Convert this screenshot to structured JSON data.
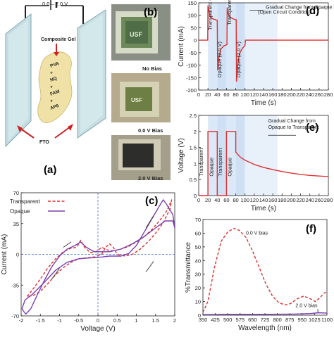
{
  "panel_a": {
    "label": "(a)",
    "voltage_label": "0.0 – 2.0 V",
    "composite_gel": "Composite Gel",
    "layers": [
      "PVA",
      "+",
      "NQ",
      "+",
      "FAM",
      "+",
      "AP6"
    ],
    "fto": "FTO"
  },
  "panel_b": {
    "label": "(b)",
    "photos": [
      {
        "caption": "No Bias",
        "logo": "USF"
      },
      {
        "caption": "0.0 V Bias",
        "logo": "USF"
      },
      {
        "caption": "2.0 V Bias",
        "logo": ""
      }
    ]
  },
  "chart_data": [
    {
      "id": "c",
      "label": "(c)",
      "type": "line",
      "xlabel": "Voltage (V)",
      "ylabel": "Current (mA)",
      "xlim": [
        -2,
        2
      ],
      "ylim": [
        -70,
        70
      ],
      "xticks": [
        "-2",
        "-1.5",
        "-1",
        "-0.5",
        "0",
        "0.5",
        "1",
        "1.5",
        "2"
      ],
      "yticks": [
        "70",
        "35",
        "0",
        "-35",
        "-70"
      ],
      "legend_position": "top-left",
      "series": [
        {
          "name": "Transparent",
          "color": "#e03030",
          "style": "dashed",
          "points": [
            [
              -1.85,
              -48
            ],
            [
              -1.7,
              -40
            ],
            [
              -1.5,
              -28
            ],
            [
              -1.3,
              -15
            ],
            [
              -1.1,
              -5
            ],
            [
              -0.9,
              3
            ],
            [
              -0.7,
              7
            ],
            [
              -0.55,
              8
            ],
            [
              -0.45,
              16
            ],
            [
              -0.35,
              8
            ],
            [
              -0.2,
              2
            ],
            [
              -0.05,
              3
            ],
            [
              0.1,
              8
            ],
            [
              0.25,
              5
            ],
            [
              0.4,
              4
            ],
            [
              0.6,
              6
            ],
            [
              0.8,
              9
            ],
            [
              1.0,
              14
            ],
            [
              1.2,
              20
            ],
            [
              1.4,
              28
            ],
            [
              1.6,
              38
            ],
            [
              1.8,
              50
            ],
            [
              1.92,
              62
            ],
            [
              1.88,
              52
            ],
            [
              1.7,
              36
            ],
            [
              1.5,
              24
            ],
            [
              1.3,
              14
            ],
            [
              1.1,
              6
            ],
            [
              0.9,
              0
            ],
            [
              0.7,
              -2
            ],
            [
              0.5,
              0
            ],
            [
              0.4,
              8
            ],
            [
              0.3,
              12
            ],
            [
              0.2,
              8
            ],
            [
              0.1,
              0
            ],
            [
              -0.1,
              -3
            ],
            [
              -0.3,
              -4
            ],
            [
              -0.5,
              -5
            ],
            [
              -0.7,
              -9
            ],
            [
              -0.9,
              -15
            ],
            [
              -1.1,
              -23
            ],
            [
              -1.3,
              -33
            ],
            [
              -1.5,
              -42
            ],
            [
              -1.7,
              -47
            ],
            [
              -1.85,
              -48
            ]
          ]
        },
        {
          "name": "Opaque",
          "color": "#7a3fb0",
          "style": "solid",
          "points": [
            [
              -1.98,
              -62
            ],
            [
              -1.88,
              -68
            ],
            [
              -1.75,
              -62
            ],
            [
              -1.6,
              -48
            ],
            [
              -1.4,
              -30
            ],
            [
              -1.2,
              -14
            ],
            [
              -1.0,
              -2
            ],
            [
              -0.8,
              6
            ],
            [
              -0.6,
              10
            ],
            [
              -0.45,
              14
            ],
            [
              -0.3,
              8
            ],
            [
              -0.1,
              3
            ],
            [
              0.1,
              3
            ],
            [
              0.3,
              3
            ],
            [
              0.6,
              6
            ],
            [
              0.9,
              12
            ],
            [
              1.2,
              20
            ],
            [
              1.5,
              30
            ],
            [
              1.75,
              38
            ],
            [
              1.95,
              38
            ],
            [
              2.0,
              30
            ],
            [
              1.95,
              45
            ],
            [
              1.8,
              56
            ],
            [
              1.7,
              62
            ],
            [
              1.6,
              55
            ],
            [
              1.4,
              40
            ],
            [
              1.2,
              25
            ],
            [
              1.0,
              10
            ],
            [
              0.8,
              1
            ],
            [
              0.6,
              -2
            ],
            [
              0.3,
              -2
            ],
            [
              0.1,
              -3
            ],
            [
              -0.2,
              -4
            ],
            [
              -0.5,
              -5
            ],
            [
              -0.8,
              -9
            ],
            [
              -1.1,
              -18
            ],
            [
              -1.4,
              -32
            ],
            [
              -1.7,
              -45
            ],
            [
              -1.9,
              -52
            ],
            [
              -1.98,
              -62
            ]
          ]
        }
      ]
    },
    {
      "id": "d",
      "label": "(d)",
      "type": "line",
      "xlabel": "Time (s)",
      "ylabel": "Current (mA)",
      "xlim": [
        0,
        280
      ],
      "ylim": [
        -200,
        150
      ],
      "xticks": [
        "0",
        "20",
        "40",
        "60",
        "80",
        "100",
        "120",
        "140",
        "160",
        "180",
        "200",
        "220",
        "240",
        "260",
        "280"
      ],
      "yticks": [
        "150",
        "100",
        "50",
        "0",
        "-50",
        "-100",
        "-150",
        "-200"
      ],
      "annotations": [
        "Transparent (0.0 V)",
        "Opaque (2.0 V)",
        "Transparent (0.0 V)",
        "Opaque (2.0 V)",
        "Gradual Change from Opaque to Transparent",
        "(Open Circuit Condition)"
      ],
      "series": [
        {
          "name": "",
          "color": "#e03030",
          "points": [
            [
              0,
              0
            ],
            [
              19.5,
              0
            ],
            [
              20,
              138
            ],
            [
              22,
              115
            ],
            [
              25,
              95
            ],
            [
              30,
              86
            ],
            [
              40,
              80
            ],
            [
              41,
              -120
            ],
            [
              43,
              -75
            ],
            [
              48,
              -35
            ],
            [
              55,
              -22
            ],
            [
              61,
              -18
            ],
            [
              61.5,
              130
            ],
            [
              63,
              108
            ],
            [
              68,
              92
            ],
            [
              75,
              85
            ],
            [
              81,
              82
            ],
            [
              81.5,
              -165
            ],
            [
              84,
              -100
            ],
            [
              88,
              -55
            ],
            [
              94,
              -33
            ],
            [
              100,
              -22
            ],
            [
              101,
              0
            ],
            [
              280,
              0
            ]
          ]
        }
      ]
    },
    {
      "id": "e",
      "label": "(e)",
      "type": "line",
      "xlabel": "Time (s)",
      "ylabel": "Voltage (V)",
      "xlim": [
        0,
        280
      ],
      "ylim": [
        0,
        2.5
      ],
      "xticks": [
        "0",
        "20",
        "40",
        "60",
        "80",
        "100",
        "120",
        "140",
        "160",
        "180",
        "200",
        "220",
        "240",
        "260",
        "280"
      ],
      "yticks": [
        "0",
        "0.5",
        "1",
        "1.5",
        "2",
        "2.5"
      ],
      "annotations": [
        "Transparent",
        "Opaque",
        "Transparent",
        "Opaque",
        "Gradual Change from",
        "Opaque to Transparent"
      ],
      "series": [
        {
          "name": "",
          "color": "#e03030",
          "points": [
            [
              0,
              0
            ],
            [
              20,
              0
            ],
            [
              20,
              2
            ],
            [
              40,
              2
            ],
            [
              40,
              0
            ],
            [
              60,
              0
            ],
            [
              60,
              2
            ],
            [
              80,
              2
            ],
            [
              80,
              1.35
            ],
            [
              90,
              1.2
            ],
            [
              100,
              1.1
            ],
            [
              120,
              0.97
            ],
            [
              140,
              0.88
            ],
            [
              160,
              0.81
            ],
            [
              180,
              0.75
            ],
            [
              200,
              0.7
            ],
            [
              220,
              0.66
            ],
            [
              240,
              0.63
            ],
            [
              260,
              0.61
            ],
            [
              280,
              0.59
            ]
          ]
        }
      ]
    },
    {
      "id": "f",
      "label": "(f)",
      "type": "line",
      "xlabel": "Wavelength (nm)",
      "ylabel": "%Transmittance",
      "xlim": [
        350,
        1100
      ],
      "ylim": [
        0,
        70
      ],
      "xticks": [
        "350",
        "425",
        "500",
        "575",
        "650",
        "725",
        "800",
        "875",
        "950",
        "1025",
        "1100"
      ],
      "yticks": [
        "0",
        "10",
        "20",
        "30",
        "40",
        "50",
        "60",
        "70"
      ],
      "series": [
        {
          "name": "0.0 V bias",
          "color": "#e03030",
          "style": "dashed",
          "points": [
            [
              350,
              2
            ],
            [
              380,
              10
            ],
            [
              420,
              35
            ],
            [
              460,
              54
            ],
            [
              500,
              61
            ],
            [
              540,
              63.5
            ],
            [
              570,
              62
            ],
            [
              610,
              57
            ],
            [
              650,
              47
            ],
            [
              690,
              35
            ],
            [
              730,
              23
            ],
            [
              770,
              14
            ],
            [
              810,
              9
            ],
            [
              850,
              7.5
            ],
            [
              880,
              8.5
            ],
            [
              920,
              12
            ],
            [
              960,
              14
            ],
            [
              1000,
              12
            ],
            [
              1030,
              10
            ],
            [
              1060,
              13
            ],
            [
              1080,
              16
            ],
            [
              1100,
              17
            ]
          ]
        },
        {
          "name": "2.0 V bias",
          "color": "#7a3fb0",
          "style": "solid",
          "points": [
            [
              350,
              0.4
            ],
            [
              500,
              0.6
            ],
            [
              700,
              0.6
            ],
            [
              900,
              0.8
            ],
            [
              1000,
              1.2
            ],
            [
              1050,
              1.8
            ],
            [
              1100,
              1.5
            ]
          ]
        }
      ]
    }
  ]
}
